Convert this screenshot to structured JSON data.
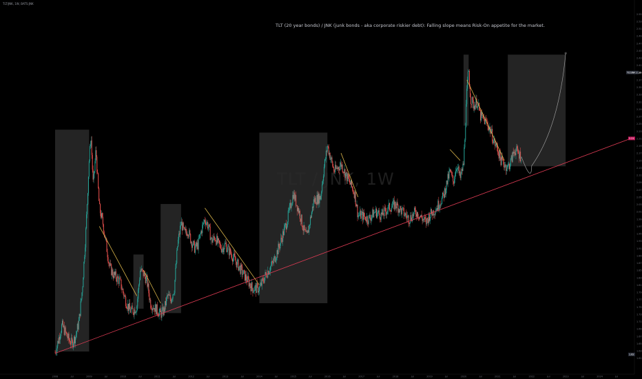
{
  "chart_data": {
    "type": "candlestick",
    "symbol": "TLT/JNK, 1W, BATS:JNK",
    "watermark": "TLT / JNK, 1W",
    "annotation": "TLT (20 year bonds) / JNK (junk bonds - aka corporate riskier debt): Falling slope means Risk-On appetite for the market.",
    "x_labels": [
      "2008",
      "Jul",
      "2009",
      "Jul",
      "2010",
      "Jul",
      "2011",
      "Jul",
      "2012",
      "Jul",
      "2013",
      "Jul",
      "2014",
      "Jul",
      "2015",
      "Jul",
      "2016",
      "Jul",
      "2017",
      "Jul",
      "2018",
      "Jul",
      "2019",
      "Jul",
      "2020",
      "Jul",
      "2021",
      "Jul",
      "2022",
      "Jul",
      "2023",
      "Jul",
      "2024",
      "Jul"
    ],
    "xlim": [
      2008.0,
      2025.0
    ],
    "y_labels": [
      "2.55",
      "2.53",
      "2.51",
      "2.49",
      "2.47",
      "2.45",
      "2.43",
      "2.41",
      "2.39",
      "2.37",
      "2.35",
      "2.33",
      "2.31",
      "2.29",
      "2.27",
      "2.25",
      "2.23",
      "2.21",
      "2.19",
      "2.17",
      "2.15",
      "2.13",
      "2.11",
      "2.09",
      "2.07",
      "2.05",
      "2.03",
      "2.01",
      "1.99",
      "1.97",
      "1.95",
      "1.93",
      "1.91",
      "1.89",
      "1.87",
      "1.85",
      "1.83",
      "1.81",
      "1.79",
      "1.77",
      "1.75",
      "1.73",
      "1.71",
      "1.69",
      "1.67",
      "1.65",
      "1.63",
      "1.61"
    ],
    "ylim": [
      1.6,
      2.56
    ],
    "price_labels": [
      {
        "label": "TLT/JNK",
        "value": "2.39"
      },
      {
        "label": "",
        "value": "2.21"
      },
      {
        "label": "",
        "value": "1.62"
      }
    ],
    "price_path": [
      [
        2008.0,
        1.625
      ],
      [
        2008.1,
        1.66
      ],
      [
        2008.2,
        1.7
      ],
      [
        2008.3,
        1.68
      ],
      [
        2008.4,
        1.66
      ],
      [
        2008.5,
        1.65
      ],
      [
        2008.6,
        1.67
      ],
      [
        2008.7,
        1.71
      ],
      [
        2008.8,
        1.8
      ],
      [
        2008.9,
        1.95
      ],
      [
        2009.0,
        2.15
      ],
      [
        2009.05,
        2.22
      ],
      [
        2009.12,
        2.08
      ],
      [
        2009.2,
        2.18
      ],
      [
        2009.3,
        2.02
      ],
      [
        2009.4,
        1.98
      ],
      [
        2009.5,
        1.92
      ],
      [
        2009.6,
        1.86
      ],
      [
        2009.7,
        1.84
      ],
      [
        2009.8,
        1.83
      ],
      [
        2009.9,
        1.82
      ],
      [
        2010.0,
        1.79
      ],
      [
        2010.1,
        1.76
      ],
      [
        2010.2,
        1.74
      ],
      [
        2010.3,
        1.74
      ],
      [
        2010.4,
        1.75
      ],
      [
        2010.5,
        1.85
      ],
      [
        2010.6,
        1.84
      ],
      [
        2010.7,
        1.82
      ],
      [
        2010.8,
        1.76
      ],
      [
        2010.9,
        1.75
      ],
      [
        2011.0,
        1.74
      ],
      [
        2011.1,
        1.73
      ],
      [
        2011.2,
        1.74
      ],
      [
        2011.3,
        1.78
      ],
      [
        2011.4,
        1.77
      ],
      [
        2011.5,
        1.8
      ],
      [
        2011.6,
        1.92
      ],
      [
        2011.7,
        1.98
      ],
      [
        2011.8,
        1.95
      ],
      [
        2011.9,
        1.96
      ],
      [
        2012.0,
        1.93
      ],
      [
        2012.1,
        1.91
      ],
      [
        2012.2,
        1.92
      ],
      [
        2012.3,
        1.96
      ],
      [
        2012.4,
        1.99
      ],
      [
        2012.5,
        1.97
      ],
      [
        2012.6,
        1.93
      ],
      [
        2012.7,
        1.94
      ],
      [
        2012.8,
        1.92
      ],
      [
        2012.9,
        1.91
      ],
      [
        2013.0,
        1.92
      ],
      [
        2013.2,
        1.89
      ],
      [
        2013.4,
        1.86
      ],
      [
        2013.6,
        1.83
      ],
      [
        2013.8,
        1.8
      ],
      [
        2014.0,
        1.8
      ],
      [
        2014.2,
        1.84
      ],
      [
        2014.4,
        1.87
      ],
      [
        2014.6,
        1.92
      ],
      [
        2014.8,
        1.98
      ],
      [
        2015.0,
        2.06
      ],
      [
        2015.1,
        2.03
      ],
      [
        2015.2,
        2.0
      ],
      [
        2015.3,
        1.96
      ],
      [
        2015.4,
        1.94
      ],
      [
        2015.6,
        2.04
      ],
      [
        2015.8,
        2.05
      ],
      [
        2015.9,
        2.13
      ],
      [
        2016.0,
        2.19
      ],
      [
        2016.2,
        2.12
      ],
      [
        2016.4,
        2.14
      ],
      [
        2016.6,
        2.1
      ],
      [
        2016.8,
        2.06
      ],
      [
        2016.9,
        2.0
      ],
      [
        2017.0,
        2.0
      ],
      [
        2017.2,
        1.99
      ],
      [
        2017.4,
        2.01
      ],
      [
        2017.6,
        2.0
      ],
      [
        2017.8,
        2.02
      ],
      [
        2018.0,
        2.03
      ],
      [
        2018.2,
        2.01
      ],
      [
        2018.4,
        1.99
      ],
      [
        2018.6,
        2.01
      ],
      [
        2018.8,
        1.99
      ],
      [
        2018.9,
        1.98
      ],
      [
        2019.0,
        2.0
      ],
      [
        2019.2,
        2.02
      ],
      [
        2019.4,
        2.05
      ],
      [
        2019.6,
        2.12
      ],
      [
        2019.7,
        2.09
      ],
      [
        2019.8,
        2.14
      ],
      [
        2019.9,
        2.1
      ],
      [
        2020.0,
        2.14
      ],
      [
        2020.1,
        2.34
      ],
      [
        2020.15,
        2.4
      ],
      [
        2020.2,
        2.32
      ],
      [
        2020.3,
        2.3
      ],
      [
        2020.4,
        2.31
      ],
      [
        2020.5,
        2.27
      ],
      [
        2020.6,
        2.26
      ],
      [
        2020.7,
        2.25
      ],
      [
        2020.8,
        2.23
      ],
      [
        2020.9,
        2.2
      ],
      [
        2021.0,
        2.18
      ],
      [
        2021.1,
        2.15
      ],
      [
        2021.2,
        2.14
      ],
      [
        2021.3,
        2.13
      ],
      [
        2021.4,
        2.15
      ],
      [
        2021.5,
        2.18
      ],
      [
        2021.6,
        2.17
      ],
      [
        2021.7,
        2.16
      ]
    ],
    "trendlines": [
      {
        "from": [
          2008.0,
          1.623
        ],
        "to": [
          2025.0,
          2.213
        ],
        "color": "#e03c55"
      },
      {
        "from": [
          2009.3,
          1.97
        ],
        "to": [
          2010.4,
          1.78
        ],
        "color": "#d9b44a"
      },
      {
        "from": [
          2010.6,
          1.85
        ],
        "to": [
          2011.1,
          1.76
        ],
        "color": "#d9b44a"
      },
      {
        "from": [
          2012.4,
          2.02
        ],
        "to": [
          2014.0,
          1.81
        ],
        "color": "#d9b44a"
      },
      {
        "from": [
          2016.4,
          2.17
        ],
        "to": [
          2016.9,
          2.05
        ],
        "color": "#d9b44a"
      },
      {
        "from": [
          2019.6,
          2.18
        ],
        "to": [
          2019.9,
          2.15
        ],
        "color": "#d9b44a"
      },
      {
        "from": [
          2020.1,
          2.37
        ],
        "to": [
          2021.2,
          2.15
        ],
        "color": "#d9b44a"
      }
    ],
    "boxes": [
      {
        "x0": 2008.0,
        "x1": 2009.0,
        "y0": 1.628,
        "y1": 2.234
      },
      {
        "x0": 2010.3,
        "x1": 2010.6,
        "y0": 1.745,
        "y1": 1.893
      },
      {
        "x0": 2011.1,
        "x1": 2011.7,
        "y0": 1.733,
        "y1": 2.031
      },
      {
        "x0": 2014.0,
        "x1": 2016.0,
        "y0": 1.76,
        "y1": 2.226
      },
      {
        "x0": 2020.0,
        "x1": 2020.15,
        "y0": 2.245,
        "y1": 2.439
      },
      {
        "x0": 2021.3,
        "x1": 2023.0,
        "y0": 2.134,
        "y1": 2.439
      }
    ],
    "projection": [
      [
        2022.0,
        2.135
      ],
      [
        2022.5,
        2.24
      ],
      [
        2023.0,
        2.443
      ]
    ],
    "grid": false,
    "legend": "none"
  }
}
